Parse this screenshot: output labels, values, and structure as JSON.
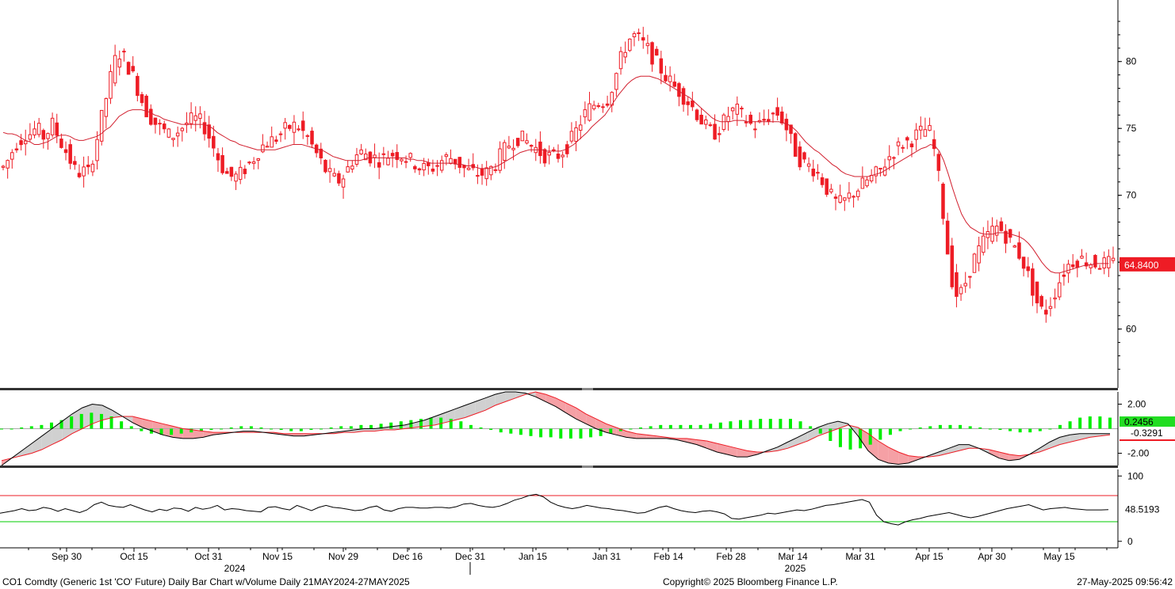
{
  "footer": {
    "left": "CO1 Comdty (Generic 1st 'CO' Future) Daily Bar Chart w/Volume  Daily 21MAY2024-27MAY2025",
    "center": "Copyright© 2025 Bloomberg Finance L.P.",
    "right": "27-May-2025 09:56:42"
  },
  "colors": {
    "background": "#ffffff",
    "up_candle": "#ffffff",
    "down_candle": "#ee1c25",
    "candle_outline": "#ee1c25",
    "ma_line": "#d2202f",
    "macd_line": "#000000",
    "signal_line": "#ee1c25",
    "macd_fill": "#f5a0a5",
    "macd_fill_pos": "#d0d0d0",
    "histogram": "#00ee00",
    "rsi_line": "#000000",
    "rsi_upper": "#ee1c25",
    "rsi_lower": "#00cc00",
    "panel_divider": "#333333"
  },
  "chart_data": [
    {
      "type": "candlestick",
      "panel": "price",
      "x_tick_labels": [
        "Sep 30",
        "Oct 15",
        "Oct 31",
        "Nov 15",
        "Nov 29",
        "Dec 16",
        "Dec 31",
        "Jan 15",
        "Jan 31",
        "Feb 14",
        "Feb 28",
        "Mar 14",
        "Mar 31",
        "Apr 15",
        "Apr 30",
        "May 15"
      ],
      "year_labels": [
        "2024",
        "2025"
      ],
      "y_ticks": [
        60,
        65,
        70,
        75,
        80
      ],
      "y_tick_labels": [
        "60",
        "",
        "70",
        "75",
        "80"
      ],
      "ylim": [
        55.6,
        84.6
      ],
      "last_price_label": "64.8400",
      "last_price": 64.84,
      "close_series": [
        72.1,
        72.6,
        73.3,
        73.9,
        74.2,
        74.6,
        74.6,
        74.9,
        74.8,
        74.4,
        74.8,
        75.3,
        74.6,
        73.9,
        73.3,
        72.6,
        71.9,
        71.7,
        71.8,
        71.7,
        72.9,
        74.3,
        75.8,
        77.3,
        78.8,
        80.1,
        80.6,
        80.3,
        79.6,
        78.9,
        78.0,
        77.1,
        76.3,
        75.8,
        75.4,
        75.1,
        74.8,
        74.5,
        74.5,
        74.8,
        75.1,
        75.4,
        75.6,
        75.7,
        75.5,
        75.1,
        74.4,
        73.6,
        72.8,
        72.1,
        71.6,
        71.4,
        71.4,
        71.6,
        72.0,
        72.4,
        72.8,
        73.3,
        73.7,
        74.0,
        74.1,
        74.3,
        74.6,
        74.9,
        75.1,
        75.2,
        75.1,
        74.7,
        74.3,
        73.7,
        73.1,
        72.5,
        71.9,
        71.5,
        71.2,
        71.1,
        71.4,
        72.0,
        72.6,
        73.0,
        73.2,
        73.1,
        72.9,
        72.8,
        72.7,
        72.8,
        73.0,
        73.1,
        73.1,
        73.0,
        72.8,
        72.6,
        72.4,
        72.1,
        72.0,
        72.0,
        72.1,
        72.3,
        72.6,
        72.8,
        72.8,
        72.6,
        72.3,
        72.0,
        71.8,
        71.7,
        71.6,
        71.6,
        71.7,
        72.0,
        72.4,
        72.9,
        73.4,
        73.8,
        74.1,
        74.3,
        74.2,
        74.0,
        73.7,
        73.5,
        73.2,
        73.0,
        72.9,
        72.9,
        73.0,
        73.3,
        73.7,
        74.2,
        74.8,
        75.5,
        76.1,
        76.5,
        76.8,
        77.0,
        77.0,
        77.2,
        78.1,
        79.1,
        80.2,
        81.1,
        81.7,
        81.9,
        81.7,
        81.3,
        80.9,
        80.4,
        79.9,
        79.4,
        78.9,
        78.5,
        78.1,
        77.8,
        77.4,
        77.0,
        76.6,
        76.1,
        75.6,
        75.1,
        74.8,
        74.7,
        75.0,
        75.5,
        76.0,
        76.3,
        76.3,
        76.0,
        75.6,
        75.3,
        75.2,
        75.3,
        75.6,
        75.9,
        76.1,
        76.1,
        75.7,
        75.0,
        74.1,
        73.3,
        72.7,
        72.4,
        72.2,
        72.0,
        71.6,
        71.1,
        70.5,
        69.9,
        69.5,
        69.4,
        69.6,
        69.9,
        70.2,
        70.5,
        70.8,
        71.1,
        71.3,
        71.6,
        71.9,
        72.4,
        72.9,
        73.3,
        73.6,
        73.9,
        74.0,
        74.2,
        74.5,
        74.7,
        74.9,
        74.7,
        73.4,
        71.3,
        68.6,
        65.8,
        63.7,
        62.6,
        62.7,
        63.5,
        64.5,
        65.3,
        65.9,
        66.5,
        67.0,
        67.4,
        67.6,
        67.4,
        67.0,
        66.5,
        66.1,
        65.6,
        64.9,
        64.0,
        63.0,
        62.0,
        61.4,
        61.4,
        62.0,
        62.8,
        63.6,
        64.3,
        64.8,
        65.1,
        65.2,
        65.2,
        65.1,
        65.0,
        64.9,
        64.9,
        64.9,
        64.9,
        64.9
      ],
      "ma_series": [
        74.7,
        74.6,
        74.6,
        74.5,
        74.3,
        74.1,
        74.0,
        73.8,
        73.8,
        73.9,
        74.0,
        74.2,
        74.4,
        74.5,
        74.5,
        74.4,
        74.2,
        74.1,
        74.1,
        74.2,
        74.3,
        74.4,
        74.6,
        74.9,
        75.1,
        75.5,
        75.9,
        76.1,
        76.3,
        76.4,
        76.4,
        76.4,
        76.3,
        76.2,
        76.0,
        75.9,
        75.7,
        75.6,
        75.5,
        75.4,
        75.3,
        75.3,
        75.3,
        75.3,
        75.3,
        75.3,
        75.2,
        75.0,
        74.7,
        74.5,
        74.3,
        74.1,
        74.0,
        73.8,
        73.7,
        73.6,
        73.5,
        73.4,
        73.4,
        73.4,
        73.4,
        73.4,
        73.5,
        73.6,
        73.7,
        73.8,
        73.8,
        73.8,
        73.7,
        73.6,
        73.5,
        73.4,
        73.3,
        73.1,
        72.9,
        72.8,
        72.7,
        72.6,
        72.6,
        72.6,
        72.6,
        72.7,
        72.8,
        72.8,
        72.8,
        72.8,
        72.8,
        72.8,
        72.8,
        72.8,
        72.8,
        72.7,
        72.7,
        72.6,
        72.6,
        72.5,
        72.4,
        72.4,
        72.4,
        72.4,
        72.4,
        72.4,
        72.3,
        72.3,
        72.2,
        72.2,
        72.1,
        72.0,
        72.0,
        72.0,
        72.1,
        72.2,
        72.4,
        72.6,
        72.8,
        73.0,
        73.2,
        73.3,
        73.4,
        73.4,
        73.4,
        73.4,
        73.3,
        73.3,
        73.3,
        73.3,
        73.4,
        73.6,
        73.8,
        74.1,
        74.4,
        74.7,
        75.1,
        75.4,
        75.7,
        76.0,
        76.5,
        77.0,
        77.5,
        77.9,
        78.3,
        78.6,
        78.8,
        78.9,
        78.9,
        78.9,
        78.8,
        78.7,
        78.5,
        78.3,
        78.1,
        77.9,
        77.7,
        77.5,
        77.3,
        77.0,
        76.7,
        76.4,
        76.1,
        75.8,
        75.6,
        75.5,
        75.5,
        75.5,
        75.6,
        75.6,
        75.6,
        75.5,
        75.5,
        75.5,
        75.5,
        75.5,
        75.5,
        75.5,
        75.5,
        75.4,
        75.3,
        75.1,
        74.8,
        74.4,
        74.0,
        73.7,
        73.4,
        73.2,
        72.9,
        72.6,
        72.3,
        72.1,
        71.8,
        71.6,
        71.5,
        71.4,
        71.4,
        71.4,
        71.4,
        71.5,
        71.6,
        71.7,
        71.9,
        72.1,
        72.3,
        72.5,
        72.7,
        72.9,
        73.1,
        73.3,
        73.5,
        73.6,
        73.8,
        73.7,
        73.3,
        72.6,
        71.6,
        70.5,
        69.5,
        68.6,
        68.0,
        67.6,
        67.4,
        67.2,
        67.1,
        67.1,
        67.1,
        67.2,
        67.2,
        67.2,
        67.1,
        67.0,
        66.9,
        66.7,
        66.4,
        66.0,
        65.5,
        65.0,
        64.6,
        64.3,
        64.2,
        64.2,
        64.3,
        64.4,
        64.5,
        64.6,
        64.7,
        64.8,
        64.8,
        64.9,
        64.9,
        64.9,
        64.9,
        64.9
      ]
    },
    {
      "type": "line",
      "panel": "macd",
      "y_tick_labels": [
        "2.00",
        "-2.00"
      ],
      "ylim": [
        -3.0,
        3.0
      ],
      "value_labels": [
        "0.2456",
        "-0.3291"
      ],
      "series": [
        {
          "values": [
            -3.0,
            -2.4,
            -1.8,
            -1.2,
            -0.6,
            0.0,
            0.6,
            1.2,
            1.7,
            2.0,
            1.9,
            1.5,
            1.0,
            0.5,
            0.1,
            -0.2,
            -0.5,
            -0.7,
            -0.8,
            -0.8,
            -0.7,
            -0.5,
            -0.4,
            -0.3,
            -0.2,
            -0.2,
            -0.3,
            -0.4,
            -0.5,
            -0.6,
            -0.6,
            -0.5,
            -0.4,
            -0.3,
            -0.2,
            -0.1,
            0.0,
            0.0,
            0.1,
            0.2,
            0.3,
            0.5,
            0.7,
            1.0,
            1.3,
            1.6,
            1.9,
            2.2,
            2.5,
            2.8,
            3.0,
            3.0,
            2.9,
            2.6,
            2.2,
            1.8,
            1.3,
            0.8,
            0.4,
            0.0,
            -0.3,
            -0.5,
            -0.7,
            -0.8,
            -0.8,
            -0.8,
            -0.8,
            -0.9,
            -1.1,
            -1.3,
            -1.6,
            -1.9,
            -2.1,
            -2.3,
            -2.3,
            -2.1,
            -1.8,
            -1.5,
            -1.1,
            -0.7,
            -0.3,
            0.1,
            0.4,
            0.6,
            0.4,
            -0.6,
            -1.8,
            -2.5,
            -2.8,
            -2.9,
            -2.8,
            -2.5,
            -2.2,
            -1.9,
            -1.6,
            -1.3,
            -1.3,
            -1.6,
            -2.0,
            -2.4,
            -2.6,
            -2.5,
            -2.1,
            -1.6,
            -1.1,
            -0.7,
            -0.5,
            -0.4,
            -0.4,
            -0.4,
            -0.4
          ]
        },
        {
          "values": [
            -2.6,
            -2.4,
            -2.2,
            -2.0,
            -1.7,
            -1.3,
            -0.9,
            -0.4,
            0.0,
            0.4,
            0.7,
            0.9,
            1.0,
            1.0,
            0.8,
            0.6,
            0.4,
            0.2,
            0.0,
            -0.1,
            -0.2,
            -0.3,
            -0.3,
            -0.3,
            -0.3,
            -0.3,
            -0.3,
            -0.3,
            -0.4,
            -0.4,
            -0.4,
            -0.4,
            -0.4,
            -0.4,
            -0.3,
            -0.3,
            -0.2,
            -0.2,
            -0.1,
            -0.1,
            0.0,
            0.1,
            0.2,
            0.3,
            0.5,
            0.7,
            0.9,
            1.2,
            1.5,
            1.9,
            2.2,
            2.5,
            2.8,
            3.0,
            2.8,
            2.5,
            2.1,
            1.7,
            1.2,
            0.8,
            0.4,
            0.1,
            -0.2,
            -0.4,
            -0.5,
            -0.6,
            -0.7,
            -0.8,
            -0.8,
            -0.9,
            -1.0,
            -1.2,
            -1.4,
            -1.6,
            -1.8,
            -1.9,
            -1.9,
            -1.8,
            -1.6,
            -1.3,
            -1.0,
            -0.6,
            -0.3,
            0.0,
            0.3,
            0.1,
            -0.4,
            -1.0,
            -1.5,
            -1.9,
            -2.2,
            -2.3,
            -2.3,
            -2.2,
            -2.0,
            -1.8,
            -1.6,
            -1.6,
            -1.7,
            -1.9,
            -2.1,
            -2.2,
            -2.1,
            -1.9,
            -1.6,
            -1.3,
            -1.1,
            -0.9,
            -0.7,
            -0.6,
            -0.5
          ]
        }
      ],
      "histogram": [
        0.0,
        0.0,
        0.1,
        0.2,
        0.3,
        0.5,
        0.7,
        1.0,
        1.2,
        1.3,
        1.2,
        1.0,
        0.6,
        0.2,
        -0.2,
        -0.4,
        -0.5,
        -0.5,
        -0.4,
        -0.3,
        -0.2,
        -0.1,
        0.0,
        0.1,
        0.2,
        0.2,
        0.1,
        0.0,
        -0.1,
        -0.2,
        -0.2,
        -0.1,
        0.0,
        0.1,
        0.2,
        0.2,
        0.3,
        0.3,
        0.4,
        0.5,
        0.6,
        0.7,
        0.8,
        0.9,
        0.9,
        0.8,
        0.6,
        0.3,
        0.1,
        -0.1,
        -0.3,
        -0.4,
        -0.5,
        -0.6,
        -0.7,
        -0.7,
        -0.8,
        -0.8,
        -0.8,
        -0.7,
        -0.6,
        -0.4,
        -0.2,
        0.0,
        0.1,
        0.2,
        0.3,
        0.3,
        0.3,
        0.3,
        0.3,
        0.4,
        0.5,
        0.6,
        0.7,
        0.7,
        0.8,
        0.8,
        0.8,
        0.8,
        0.6,
        0.2,
        -0.4,
        -1.0,
        -1.5,
        -1.7,
        -1.6,
        -1.3,
        -0.9,
        -0.5,
        -0.2,
        0.0,
        0.1,
        0.2,
        0.3,
        0.3,
        0.3,
        0.2,
        0.1,
        0.0,
        -0.1,
        -0.2,
        -0.3,
        -0.3,
        -0.2,
        0.0,
        0.3,
        0.6,
        0.9,
        1.0,
        1.0,
        0.9
      ]
    },
    {
      "type": "line",
      "panel": "rsi",
      "y_tick_labels": [
        "100",
        "0"
      ],
      "ylim": [
        -10,
        110
      ],
      "upper_band": 70,
      "lower_band": 30,
      "value_label": "48.5193",
      "values": [
        43,
        45,
        47,
        50,
        47,
        48,
        52,
        50,
        46,
        50,
        47,
        44,
        48,
        56,
        60,
        55,
        53,
        52,
        56,
        52,
        48,
        45,
        49,
        47,
        51,
        50,
        46,
        52,
        49,
        51,
        55,
        48,
        50,
        49,
        47,
        46,
        45,
        52,
        53,
        50,
        48,
        55,
        51,
        47,
        52,
        55,
        52,
        51,
        49,
        47,
        48,
        52,
        54,
        48,
        46,
        50,
        52,
        52,
        51,
        51,
        52,
        52,
        51,
        53,
        57,
        58,
        55,
        53,
        52,
        54,
        58,
        63,
        66,
        70,
        72,
        68,
        60,
        55,
        52,
        50,
        52,
        55,
        53,
        51,
        50,
        48,
        47,
        45,
        43,
        44,
        48,
        52,
        54,
        50,
        47,
        45,
        44,
        46,
        47,
        45,
        42,
        35,
        34,
        36,
        38,
        40,
        43,
        42,
        44,
        46,
        48,
        47,
        49,
        52,
        55,
        56,
        58,
        60,
        62,
        64,
        60,
        40,
        30,
        27,
        25,
        30,
        33,
        35,
        38,
        40,
        42,
        44,
        41,
        38,
        36,
        38,
        41,
        44,
        47,
        50,
        52,
        54,
        56,
        52,
        48,
        50,
        51,
        52,
        50,
        49,
        48,
        48,
        48,
        48.5
      ]
    }
  ]
}
